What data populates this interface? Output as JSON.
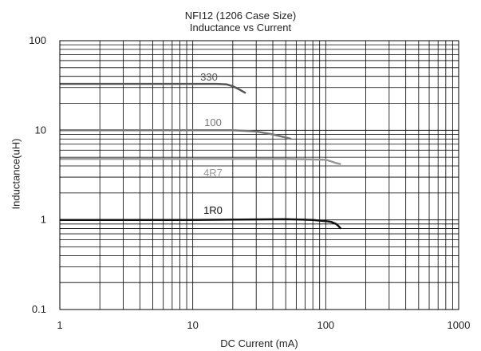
{
  "chart_data": {
    "type": "line",
    "title": "NFI12 (1206 Case Size)",
    "subtitle": "Inductance vs Current",
    "xlabel": "DC Current (mA)",
    "ylabel": "Inductance(uH)",
    "xscale": "log",
    "yscale": "log",
    "xlim": [
      1,
      1000
    ],
    "ylim": [
      0.1,
      100
    ],
    "xticks": [
      "1",
      "10",
      "100",
      "1000"
    ],
    "yticks": [
      "0.1",
      "1",
      "10",
      "100"
    ],
    "grid": true,
    "series": [
      {
        "name": "330",
        "color": "#555555",
        "x": [
          1,
          5,
          10,
          15,
          18,
          20,
          22,
          25
        ],
        "y": [
          33,
          33,
          33,
          33,
          32.5,
          31,
          29,
          26
        ]
      },
      {
        "name": "100",
        "color": "#777777",
        "x": [
          1,
          5,
          10,
          20,
          30,
          40,
          50,
          55
        ],
        "y": [
          10,
          10,
          10,
          10,
          9.7,
          9.0,
          8.3,
          8.0
        ]
      },
      {
        "name": "4R7",
        "color": "#999999",
        "x": [
          1,
          10,
          50,
          100,
          110,
          120,
          130
        ],
        "y": [
          4.8,
          4.8,
          4.8,
          4.7,
          4.5,
          4.3,
          4.2
        ]
      },
      {
        "name": "1R0",
        "color": "#111111",
        "x": [
          1,
          10,
          50,
          80,
          100,
          110,
          120,
          125,
          130
        ],
        "y": [
          1.0,
          1.0,
          1.02,
          1.0,
          0.97,
          0.95,
          0.9,
          0.85,
          0.8
        ]
      }
    ]
  }
}
